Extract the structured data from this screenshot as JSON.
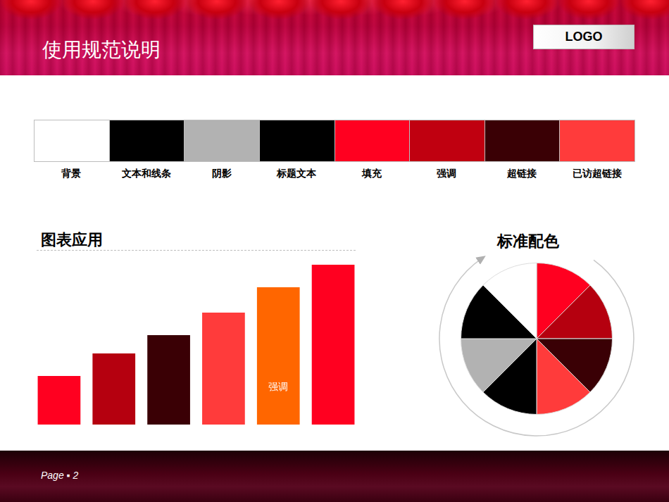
{
  "header": {
    "title": "使用规范说明",
    "logo": "LOGO"
  },
  "palette": [
    {
      "label": "背景",
      "color": "#FFFFFF"
    },
    {
      "label": "文本和线条",
      "color": "#000000"
    },
    {
      "label": "阴影",
      "color": "#B2B2B2"
    },
    {
      "label": "标题文本",
      "color": "#000000"
    },
    {
      "label": "填充",
      "color": "#FF0020"
    },
    {
      "label": "强调",
      "color": "#C00010"
    },
    {
      "label": "超链接",
      "color": "#3A0005"
    },
    {
      "label": "已访超链接",
      "color": "#FF3B3B"
    }
  ],
  "chart_data": [
    {
      "type": "bar",
      "title": "图表应用",
      "categories": [
        null,
        null,
        null,
        null,
        null,
        null
      ],
      "values": [
        69,
        101,
        127,
        159,
        195,
        227
      ],
      "colors": [
        "#FF0020",
        "#B5000F",
        "#3A0005",
        "#FF3B3B",
        "#FF6600",
        "#FF0020"
      ],
      "ylim": [
        0,
        230
      ],
      "grid": false,
      "tick_labels": false,
      "annotations": [
        {
          "index": 4,
          "text": "强调"
        }
      ]
    },
    {
      "type": "pie",
      "title": "标准配色",
      "values": [
        12.5,
        12.5,
        12.5,
        12.5,
        12.5,
        12.5,
        12.5,
        12.5
      ],
      "colors": [
        "#FF0020",
        "#B5000F",
        "#3A0005",
        "#FF3B3B",
        "#000000",
        "#B2B2B2",
        "#000000",
        "#FFFFFF"
      ]
    }
  ],
  "footer": {
    "page": "Page ▪ 2"
  }
}
